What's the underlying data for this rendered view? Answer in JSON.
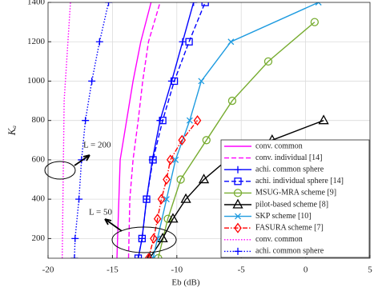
{
  "chart_data": {
    "type": "line",
    "x_label": "Eb (dB)",
    "y_label": "Kₐ",
    "xlim": [
      -20,
      5
    ],
    "xticks": [
      -20,
      -15,
      -10,
      -5,
      0,
      5
    ],
    "ylim": [
      100,
      1400
    ],
    "yticks": [
      200,
      400,
      600,
      800,
      1000,
      1200,
      1400
    ],
    "grid": true,
    "legend": "lower right",
    "annotations": [
      "L = 200",
      "L = 50"
    ],
    "series": [
      {
        "name": "conv. common",
        "color": "#ff00ff",
        "linestyle": "solid",
        "marker": "none",
        "x": [
          -14.65,
          -14.6,
          -14.5,
          -14.4,
          -13.9,
          -13.4,
          -12.8,
          -12.0
        ],
        "values": [
          100,
          200,
          400,
          600,
          800,
          1000,
          1200,
          1400
        ]
      },
      {
        "name": "conv. individual [14]",
        "color": "#ff00ff",
        "linestyle": "dashed",
        "marker": "none",
        "x": [
          -13.75,
          -13.65,
          -13.4,
          -13.0,
          -12.65,
          -12.2,
          -11.3
        ],
        "values": [
          100,
          400,
          600,
          800,
          1000,
          1200,
          1400
        ]
      },
      {
        "name": "achi. common sphere",
        "color": "#0000ff",
        "linestyle": "solid",
        "marker": "plus",
        "x": [
          -13.0,
          -12.7,
          -12.35,
          -11.9,
          -11.3,
          -10.4,
          -9.55,
          -8.7
        ],
        "values": [
          100,
          200,
          400,
          600,
          800,
          1000,
          1200,
          1400
        ]
      },
      {
        "name": "achi. individual sphere [14]",
        "color": "#0000ff",
        "linestyle": "dashed",
        "marker": "square",
        "x": [
          -13.0,
          -12.7,
          -12.35,
          -11.85,
          -11.1,
          -10.2,
          -9.05,
          -7.8
        ],
        "values": [
          100,
          200,
          400,
          600,
          800,
          1000,
          1200,
          1400
        ]
      },
      {
        "name": "MSUG-MRA scheme [9]",
        "color": "#77ac30",
        "linestyle": "solid",
        "marker": "circle",
        "x": [
          -11.45,
          -10.7,
          -9.7,
          -7.7,
          -5.7,
          -2.9,
          0.7
        ],
        "values": [
          100,
          300,
          500,
          700,
          900,
          1100,
          1300
        ]
      },
      {
        "name": "pilot-based scheme [8]",
        "color": "#000000",
        "linestyle": "solid",
        "marker": "triangle",
        "x": [
          -12.1,
          -11.1,
          -10.3,
          -9.3,
          -7.9,
          -6.1,
          -2.6,
          1.4
        ],
        "values": [
          100,
          200,
          300,
          400,
          500,
          600,
          700,
          800
        ]
      },
      {
        "name": "SKP scheme [10]",
        "color": "#1e9be0",
        "linestyle": "solid",
        "marker": "x",
        "x": [
          -11.85,
          -11.5,
          -10.8,
          -10.1,
          -9.0,
          -8.1,
          -5.8,
          1.0
        ],
        "values": [
          100,
          200,
          400,
          600,
          800,
          1000,
          1200,
          1400
        ]
      },
      {
        "name": "FASURA scheme [7]",
        "color": "#ff0000",
        "linestyle": "dashdot",
        "marker": "diamond",
        "x": [
          -12.2,
          -11.8,
          -11.5,
          -11.2,
          -10.8,
          -10.5,
          -9.6,
          -8.4
        ],
        "values": [
          100,
          200,
          300,
          400,
          500,
          600,
          700,
          800
        ]
      },
      {
        "name": "conv. common",
        "color": "#ff00ff",
        "linestyle": "dotted",
        "marker": "none",
        "x": [
          -18.9,
          -18.75,
          -18.26
        ],
        "values": [
          100,
          900,
          1400
        ]
      },
      {
        "name": "achi. common sphere",
        "color": "#0000ff",
        "linestyle": "dotted",
        "marker": "plus",
        "x": [
          -17.95,
          -17.9,
          -17.6,
          -17.4,
          -17.1,
          -16.6,
          -16.0,
          -15.3
        ],
        "values": [
          100,
          200,
          400,
          600,
          800,
          1000,
          1200,
          1400
        ]
      }
    ]
  }
}
